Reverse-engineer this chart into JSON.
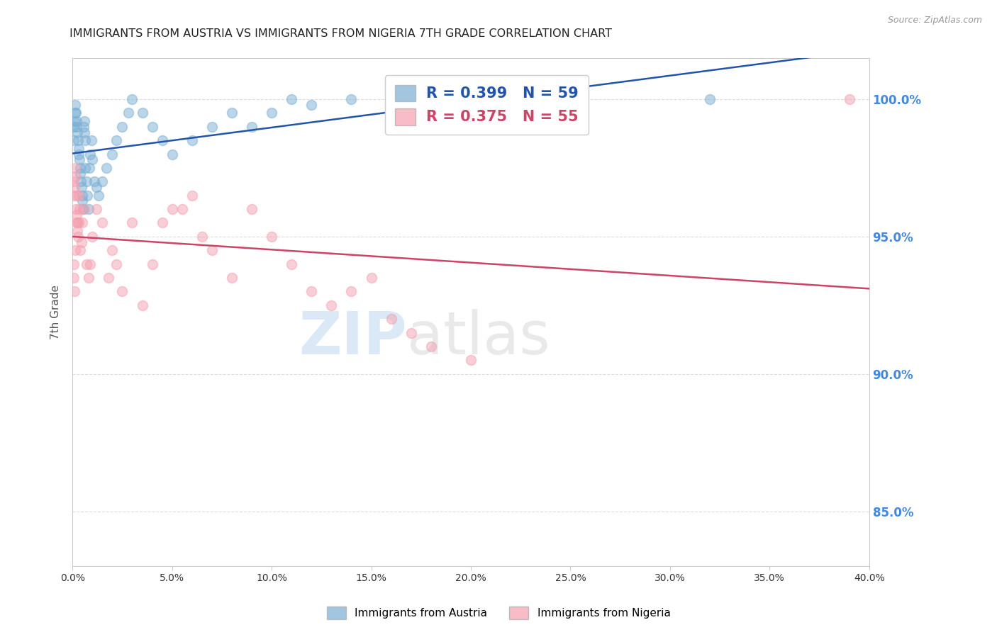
{
  "title": "IMMIGRANTS FROM AUSTRIA VS IMMIGRANTS FROM NIGERIA 7TH GRADE CORRELATION CHART",
  "source": "Source: ZipAtlas.com",
  "ylabel_left": "7th Grade",
  "xlim": [
    0.0,
    40.0
  ],
  "ylim": [
    83.0,
    101.5
  ],
  "yticks": [
    85.0,
    90.0,
    95.0,
    100.0
  ],
  "xticks": [
    0.0,
    5.0,
    10.0,
    15.0,
    20.0,
    25.0,
    30.0,
    35.0,
    40.0
  ],
  "austria_color": "#7BAFD4",
  "nigeria_color": "#F4A0B0",
  "austria_line_color": "#2255AA",
  "nigeria_line_color": "#CC4466",
  "austria_R": 0.399,
  "austria_N": 59,
  "nigeria_R": 0.375,
  "nigeria_N": 55,
  "legend_austria_label": "Immigrants from Austria",
  "legend_nigeria_label": "Immigrants from Nigeria",
  "watermark_zip": "ZIP",
  "watermark_atlas": "atlas",
  "background_color": "#FFFFFF",
  "austria_x": [
    0.05,
    0.08,
    0.1,
    0.12,
    0.15,
    0.18,
    0.2,
    0.22,
    0.25,
    0.28,
    0.3,
    0.32,
    0.35,
    0.38,
    0.4,
    0.42,
    0.45,
    0.48,
    0.5,
    0.52,
    0.55,
    0.58,
    0.6,
    0.62,
    0.65,
    0.7,
    0.75,
    0.8,
    0.85,
    0.9,
    0.95,
    1.0,
    1.1,
    1.2,
    1.3,
    1.5,
    1.7,
    2.0,
    2.2,
    2.5,
    2.8,
    3.0,
    3.5,
    4.0,
    4.5,
    5.0,
    6.0,
    7.0,
    8.0,
    9.0,
    10.0,
    11.0,
    12.0,
    14.0,
    16.0,
    18.0,
    20.0,
    25.0,
    32.0
  ],
  "austria_y": [
    98.5,
    99.0,
    99.2,
    99.5,
    99.8,
    99.5,
    99.2,
    99.0,
    98.8,
    98.5,
    98.2,
    98.0,
    97.8,
    97.5,
    97.3,
    97.0,
    96.8,
    96.5,
    96.3,
    96.0,
    99.0,
    99.2,
    98.8,
    98.5,
    97.5,
    97.0,
    96.5,
    96.0,
    97.5,
    98.0,
    98.5,
    97.8,
    97.0,
    96.8,
    96.5,
    97.0,
    97.5,
    98.0,
    98.5,
    99.0,
    99.5,
    100.0,
    99.5,
    99.0,
    98.5,
    98.0,
    98.5,
    99.0,
    99.5,
    99.0,
    99.5,
    100.0,
    99.8,
    100.0,
    99.5,
    100.0,
    100.0,
    99.8,
    100.0
  ],
  "nigeria_x": [
    0.05,
    0.08,
    0.1,
    0.12,
    0.15,
    0.18,
    0.2,
    0.22,
    0.25,
    0.28,
    0.3,
    0.35,
    0.4,
    0.45,
    0.5,
    0.6,
    0.7,
    0.8,
    0.9,
    1.0,
    1.2,
    1.5,
    1.8,
    2.0,
    2.2,
    2.5,
    3.0,
    3.5,
    4.0,
    4.5,
    5.0,
    5.5,
    6.0,
    6.5,
    7.0,
    8.0,
    9.0,
    10.0,
    11.0,
    12.0,
    13.0,
    14.0,
    15.0,
    16.0,
    17.0,
    18.0,
    20.0,
    39.0,
    0.05,
    0.08,
    0.1,
    0.15,
    0.2,
    0.25,
    0.3
  ],
  "nigeria_y": [
    96.5,
    97.0,
    96.8,
    97.2,
    97.5,
    96.0,
    95.8,
    95.5,
    95.2,
    95.0,
    95.5,
    96.0,
    94.5,
    94.8,
    95.5,
    96.0,
    94.0,
    93.5,
    94.0,
    95.0,
    96.0,
    95.5,
    93.5,
    94.5,
    94.0,
    93.0,
    95.5,
    92.5,
    94.0,
    95.5,
    96.0,
    96.0,
    96.5,
    95.0,
    94.5,
    93.5,
    96.0,
    95.0,
    94.0,
    93.0,
    92.5,
    93.0,
    93.5,
    92.0,
    91.5,
    91.0,
    90.5,
    100.0,
    94.0,
    93.5,
    93.0,
    94.5,
    96.5,
    95.5,
    96.5
  ]
}
